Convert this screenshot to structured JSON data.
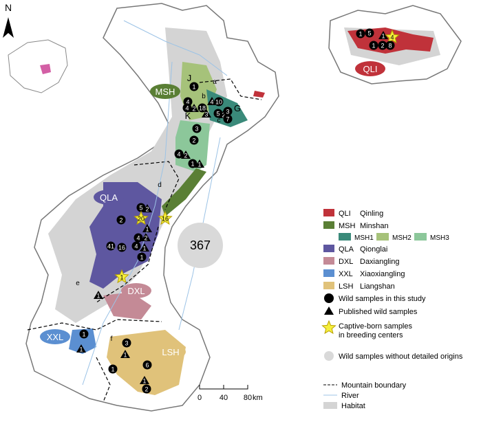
{
  "north": "N",
  "regions": [
    {
      "code": "QLI"
    },
    {
      "code": "MSH"
    },
    {
      "code": "QLA"
    },
    {
      "code": "DXL"
    },
    {
      "code": "XXL"
    },
    {
      "code": "LSH"
    }
  ],
  "sub_labels": [
    "J",
    "K",
    "G",
    "a",
    "b",
    "c",
    "d",
    "e",
    "f"
  ],
  "unlocated_count": "367",
  "markers": [
    {
      "kind": "circle",
      "label": "1"
    },
    {
      "kind": "circle",
      "label": "4"
    },
    {
      "kind": "triangle",
      "label": "4"
    },
    {
      "kind": "circle",
      "label": "10"
    },
    {
      "kind": "circle",
      "label": "4"
    },
    {
      "kind": "triangle",
      "label": "2"
    },
    {
      "kind": "circle",
      "label": "18"
    },
    {
      "kind": "triangle",
      "label": "3"
    },
    {
      "kind": "circle",
      "label": "5"
    },
    {
      "kind": "triangle",
      "label": "2"
    },
    {
      "kind": "circle",
      "label": "3"
    },
    {
      "kind": "circle",
      "label": "7"
    },
    {
      "kind": "circle",
      "label": "3"
    },
    {
      "kind": "circle",
      "label": "2"
    },
    {
      "kind": "circle",
      "label": "4"
    },
    {
      "kind": "triangle",
      "label": "2"
    },
    {
      "kind": "circle",
      "label": "1"
    },
    {
      "kind": "triangle",
      "label": "1"
    },
    {
      "kind": "circle",
      "label": "5"
    },
    {
      "kind": "triangle",
      "label": "2"
    },
    {
      "kind": "circle",
      "label": "2"
    },
    {
      "kind": "star",
      "label": "20"
    },
    {
      "kind": "star",
      "label": "16"
    },
    {
      "kind": "triangle",
      "label": "1"
    },
    {
      "kind": "circle",
      "label": "4"
    },
    {
      "kind": "triangle",
      "label": "2"
    },
    {
      "kind": "circle",
      "label": "41"
    },
    {
      "kind": "circle",
      "label": "16"
    },
    {
      "kind": "circle",
      "label": "4"
    },
    {
      "kind": "triangle",
      "label": "1"
    },
    {
      "kind": "circle",
      "label": "1"
    },
    {
      "kind": "star",
      "label": "1"
    },
    {
      "kind": "triangle",
      "label": "1"
    },
    {
      "kind": "circle",
      "label": "1"
    },
    {
      "kind": "triangle",
      "label": "1"
    },
    {
      "kind": "circle",
      "label": "3"
    },
    {
      "kind": "triangle",
      "label": "1"
    },
    {
      "kind": "circle",
      "label": "1"
    },
    {
      "kind": "circle",
      "label": "6"
    },
    {
      "kind": "triangle",
      "label": "1"
    },
    {
      "kind": "circle",
      "label": "2"
    },
    {
      "kind": "circle",
      "label": "1"
    },
    {
      "kind": "circle",
      "label": "5"
    },
    {
      "kind": "triangle",
      "label": "1"
    },
    {
      "kind": "star",
      "label": "4"
    },
    {
      "kind": "circle",
      "label": "1"
    },
    {
      "kind": "circle",
      "label": "2"
    },
    {
      "kind": "circle",
      "label": "8"
    }
  ],
  "legend": {
    "populations": [
      {
        "code": "QLI",
        "name": "Qinling",
        "color": "#c0323a"
      },
      {
        "code": "MSH",
        "name": "Minshan",
        "color": "#5a7f35"
      },
      {
        "code": "QLA",
        "name": "Qionglai",
        "color": "#5e57a0"
      },
      {
        "code": "DXL",
        "name": "Daxiangling",
        "color": "#c48a96"
      },
      {
        "code": "XXL",
        "name": "Xiaoxiangling",
        "color": "#5b8fd1"
      },
      {
        "code": "LSH",
        "name": "Liangshan",
        "color": "#e0c27a"
      }
    ],
    "subpopulations": [
      {
        "name": "MSH1",
        "color": "#3a8a7a"
      },
      {
        "name": "MSH2",
        "color": "#a6c27a"
      },
      {
        "name": "MSH3",
        "color": "#8cc79a"
      }
    ],
    "samples": [
      "Wild samples in this study",
      "Published wild samples",
      "Captive-born samples in breeding centers",
      "Wild samples without detailed origins"
    ],
    "lines": [
      "Mountain boundary",
      "River",
      "Habitat"
    ]
  },
  "scale": {
    "ticks": [
      "0",
      "40",
      "80"
    ],
    "unit": "km"
  }
}
